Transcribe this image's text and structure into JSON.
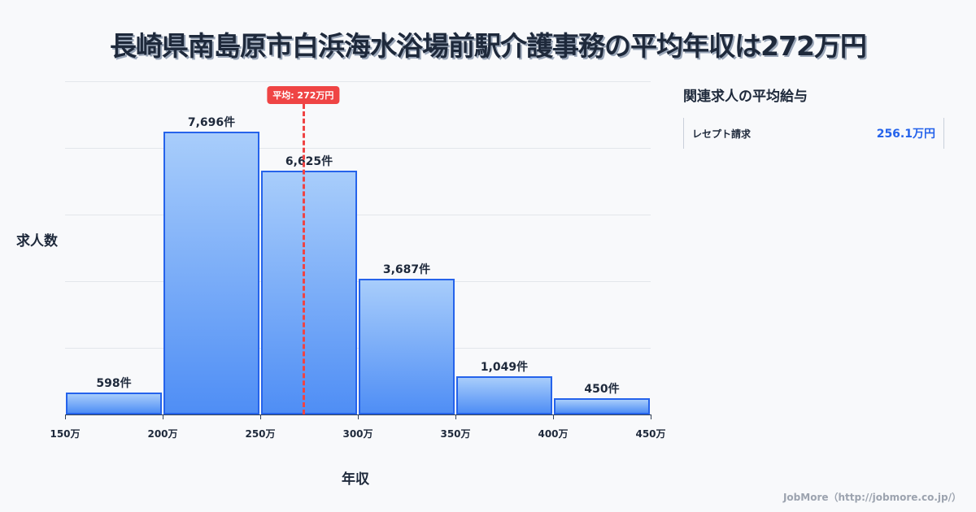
{
  "title": "長崎県南島原市白浜海水浴場前駅介護事務の平均年収は272万円",
  "chart_data": {
    "type": "bar",
    "title": "長崎県南島原市白浜海水浴場前駅介護事務の平均年収は272万円",
    "xlabel": "年収",
    "ylabel": "求人数",
    "categories": [
      "150万-200万",
      "200万-250万",
      "250万-300万",
      "300万-350万",
      "350万-400万",
      "400万-450万"
    ],
    "x_ticks": [
      "150万",
      "200万",
      "250万",
      "300万",
      "350万",
      "400万",
      "450万"
    ],
    "values": [
      598,
      7696,
      6625,
      3687,
      1049,
      450
    ],
    "value_labels": [
      "598件",
      "7,696件",
      "6,625件",
      "3,687件",
      "1,049件",
      "450件"
    ],
    "ylim": [
      0,
      9066
    ],
    "grid": true,
    "gridline_count": 5,
    "average": {
      "value": 272,
      "label": "平均: 272万円",
      "color": "#ef4444"
    },
    "bar_color": "#4f8ef5",
    "bar_border_color": "#2563eb"
  },
  "side_panel": {
    "title": "関連求人の平均給与",
    "items": [
      {
        "name": "レセプト請求",
        "value": "256.1万円"
      }
    ]
  },
  "footer": "JobMore（http://jobmore.co.jp/）"
}
